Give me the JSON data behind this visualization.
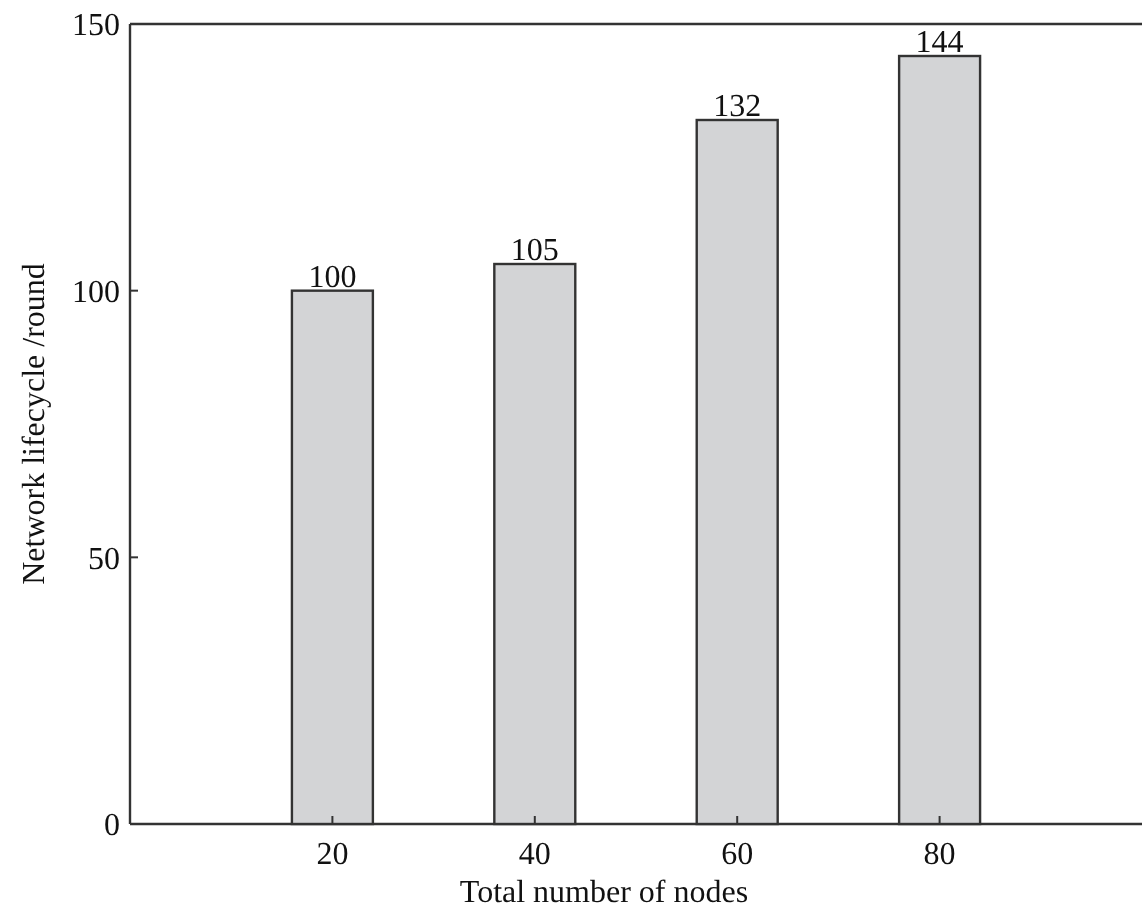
{
  "chart_data": {
    "type": "bar",
    "categories": [
      "20",
      "40",
      "60",
      "80"
    ],
    "values": [
      100,
      105,
      132,
      144
    ],
    "color": "#d3d4d6",
    "ylim": [
      0,
      150
    ],
    "yticks": [
      0,
      50,
      100,
      150
    ],
    "xlabel": "Total number of nodes",
    "ylabel": "Network lifecycle /round",
    "data_labels": true
  }
}
